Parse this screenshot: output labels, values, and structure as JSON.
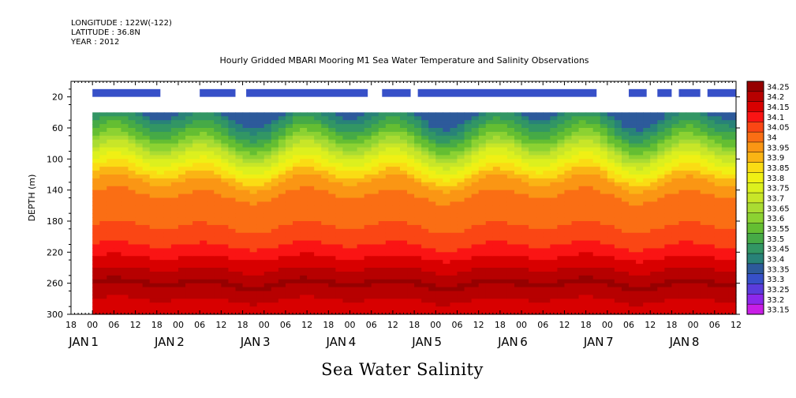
{
  "header": {
    "longitude": "LONGITUDE : 122W(-122)",
    "latitude": "LATITUDE : 36.8N",
    "year": "YEAR : 2012"
  },
  "chart_data": {
    "type": "heatmap",
    "title": "Hourly Gridded MBARI Mooring M1 Sea Water Temperature and Salinity Observations",
    "xlabel": "Sea Water Salinity",
    "ylabel": "DEPTH (m)",
    "ylim": [
      300,
      0
    ],
    "xlim_hours": [
      -6,
      180
    ],
    "y_ticks": [
      20,
      60,
      100,
      140,
      180,
      220,
      260,
      300
    ],
    "x_hour_ticks": [
      "18",
      "00",
      "06",
      "12",
      "18",
      "00",
      "06",
      "12",
      "18",
      "00",
      "06",
      "12",
      "18",
      "00",
      "06",
      "12",
      "18",
      "00",
      "06",
      "12",
      "18",
      "00",
      "06",
      "12",
      "18",
      "00",
      "06",
      "12",
      "18",
      "00",
      "06",
      "12"
    ],
    "date_labels": [
      {
        "day": "JAN",
        "num": "1"
      },
      {
        "day": "JAN",
        "num": "2"
      },
      {
        "day": "JAN",
        "num": "3"
      },
      {
        "day": "JAN",
        "num": "4"
      },
      {
        "day": "JAN",
        "num": "5"
      },
      {
        "day": "JAN",
        "num": "6"
      },
      {
        "day": "JAN",
        "num": "7"
      },
      {
        "day": "JAN",
        "num": "8"
      }
    ],
    "colorbar": {
      "levels": [
        "34.25",
        "34.2",
        "34.15",
        "34.1",
        "34.05",
        "34",
        "33.95",
        "33.9",
        "33.85",
        "33.8",
        "33.75",
        "33.7",
        "33.65",
        "33.6",
        "33.55",
        "33.5",
        "33.45",
        "33.4",
        "33.35",
        "33.3",
        "33.25",
        "33.2",
        "33.15"
      ],
      "colors": [
        "#960000",
        "#b70000",
        "#d80000",
        "#fa1414",
        "#fa4614",
        "#fa6e14",
        "#fa9614",
        "#fab414",
        "#fadc14",
        "#f0f014",
        "#dcf01e",
        "#c8e628",
        "#aadc32",
        "#8cd232",
        "#64be32",
        "#46aa46",
        "#329664",
        "#288278",
        "#2d5a9b",
        "#3750c8",
        "#5a3cdc",
        "#8c28eb",
        "#c81ee6"
      ]
    },
    "surface_depth_m": 20,
    "data_start_depth_m": 40,
    "data_start_hour": 0,
    "data_end_hour": 180,
    "surface_segments_hours": [
      [
        0,
        19
      ],
      [
        30,
        40
      ],
      [
        43,
        77
      ],
      [
        81,
        89
      ],
      [
        91,
        141
      ],
      [
        150,
        155
      ],
      [
        158,
        162
      ],
      [
        164,
        170
      ],
      [
        172,
        180
      ]
    ],
    "profile": [
      {
        "depth": 40,
        "sal": 33.38
      },
      {
        "depth": 50,
        "sal": 33.45
      },
      {
        "depth": 60,
        "sal": 33.5
      },
      {
        "depth": 70,
        "sal": 33.56
      },
      {
        "depth": 80,
        "sal": 33.62
      },
      {
        "depth": 90,
        "sal": 33.7
      },
      {
        "depth": 100,
        "sal": 33.77
      },
      {
        "depth": 110,
        "sal": 33.83
      },
      {
        "depth": 120,
        "sal": 33.89
      },
      {
        "depth": 130,
        "sal": 33.95
      },
      {
        "depth": 140,
        "sal": 33.99
      },
      {
        "depth": 160,
        "sal": 34.02
      },
      {
        "depth": 180,
        "sal": 34.04
      },
      {
        "depth": 200,
        "sal": 34.07
      },
      {
        "depth": 215,
        "sal": 34.11
      },
      {
        "depth": 230,
        "sal": 34.16
      },
      {
        "depth": 245,
        "sal": 34.21
      },
      {
        "depth": 260,
        "sal": 34.26
      },
      {
        "depth": 275,
        "sal": 34.22
      },
      {
        "depth": 285,
        "sal": 34.19
      },
      {
        "depth": 300,
        "sal": 34.19
      }
    ]
  }
}
